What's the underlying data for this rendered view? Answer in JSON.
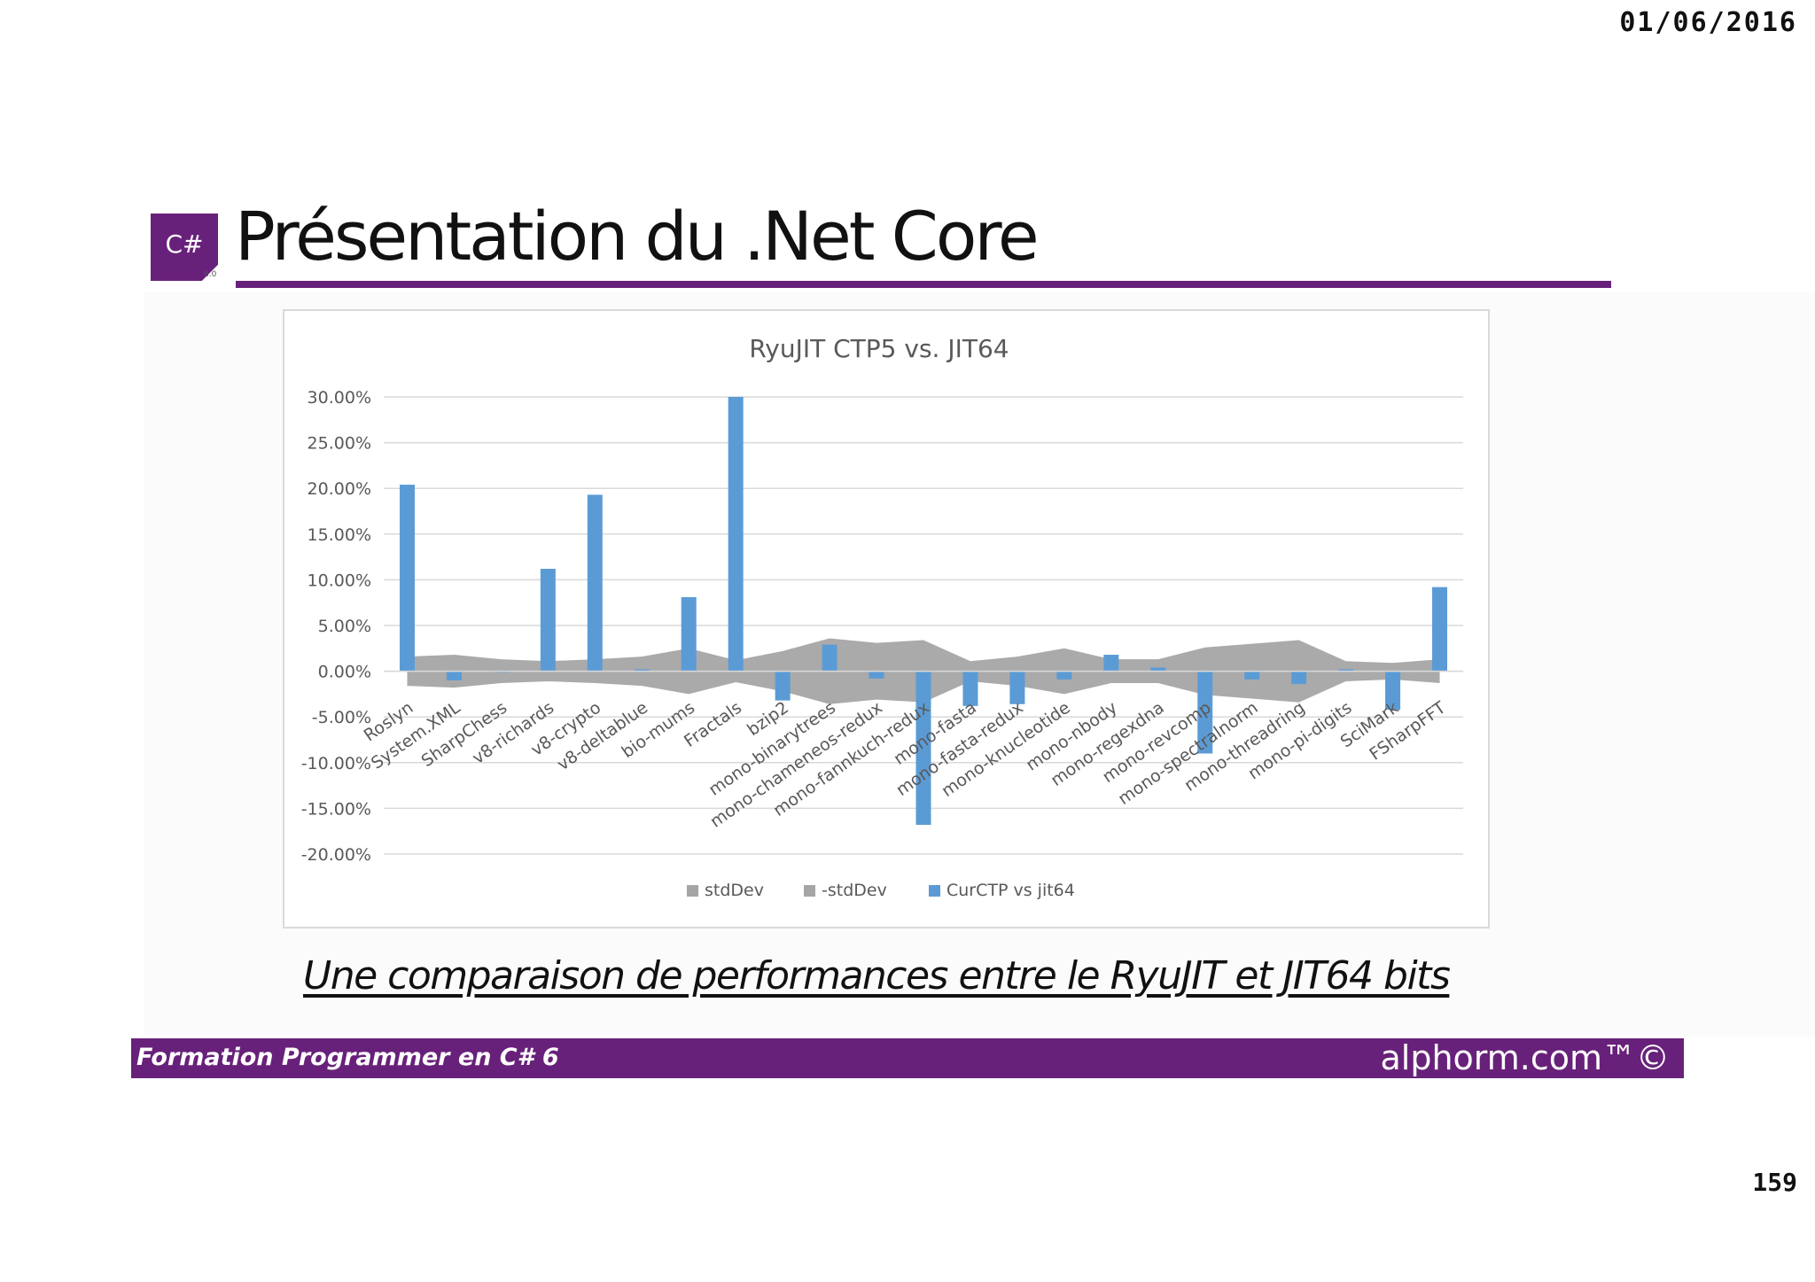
{
  "header": {
    "date": "01/06/2016",
    "page_number": "159"
  },
  "slide": {
    "logo_text": "C#",
    "logo_version": "6.0",
    "title": "Présentation du .Net Core",
    "subtitle": "Une comparaison de performances entre le RyuJIT et JIT64 bits",
    "footer_left": "Formation Programmer en C# 6",
    "footer_right": "alphorm.com™©"
  },
  "colors": {
    "accent": "#68217a",
    "band": "#a5a5a5",
    "bar": "#5b9bd5",
    "grid": "#d9d9d9",
    "axis_text": "#595959"
  },
  "chart_data": {
    "type": "bar",
    "title": "RyuJIT CTP5 vs. JIT64",
    "xlabel": "",
    "ylabel": "",
    "ylim": [
      -0.2,
      0.3
    ],
    "y_ticks": [
      0.3,
      0.25,
      0.2,
      0.15,
      0.1,
      0.05,
      0.0,
      -0.05,
      -0.1,
      -0.15,
      -0.2
    ],
    "y_tick_labels": [
      "30.00%",
      "25.00%",
      "20.00%",
      "15.00%",
      "10.00%",
      "5.00%",
      "0.00%",
      "-5.00%",
      "-10.00%",
      "-15.00%",
      "-20.00%"
    ],
    "grid": true,
    "legend_position": "bottom",
    "categories": [
      "Roslyn",
      "System.XML",
      "SharpChess",
      "v8-richards",
      "v8-crypto",
      "v8-deltablue",
      "bio-mums",
      "Fractals",
      "bzip2",
      "mono-binarytrees",
      "mono-chameneos-redux",
      "mono-fannkuch-redux",
      "mono-fasta",
      "mono-fasta-redux",
      "mono-knucleotide",
      "mono-nbody",
      "mono-regexdna",
      "mono-revcomp",
      "mono-spectralnorm",
      "mono-threadring",
      "mono-pi-digits",
      "SciMark",
      "FSharpFFT"
    ],
    "series": [
      {
        "name": "stdDev",
        "type": "area",
        "values": [
          0.016,
          0.018,
          0.013,
          0.011,
          0.013,
          0.016,
          0.025,
          0.012,
          0.022,
          0.036,
          0.031,
          0.034,
          0.011,
          0.016,
          0.025,
          0.013,
          0.013,
          0.026,
          0.03,
          0.034,
          0.011,
          0.009,
          0.013
        ]
      },
      {
        "name": "-stdDev",
        "type": "area",
        "values": [
          -0.016,
          -0.018,
          -0.013,
          -0.011,
          -0.013,
          -0.016,
          -0.025,
          -0.012,
          -0.022,
          -0.036,
          -0.031,
          -0.034,
          -0.011,
          -0.016,
          -0.025,
          -0.013,
          -0.013,
          -0.026,
          -0.03,
          -0.034,
          -0.011,
          -0.009,
          -0.013
        ]
      },
      {
        "name": "CurCTP vs jit64",
        "type": "bar",
        "values": [
          0.204,
          -0.01,
          0.0,
          0.112,
          0.193,
          0.002,
          0.081,
          0.3,
          -0.032,
          0.029,
          -0.008,
          -0.168,
          -0.038,
          -0.036,
          -0.009,
          0.018,
          0.004,
          -0.09,
          -0.009,
          -0.014,
          0.002,
          -0.042,
          0.092
        ]
      }
    ]
  }
}
